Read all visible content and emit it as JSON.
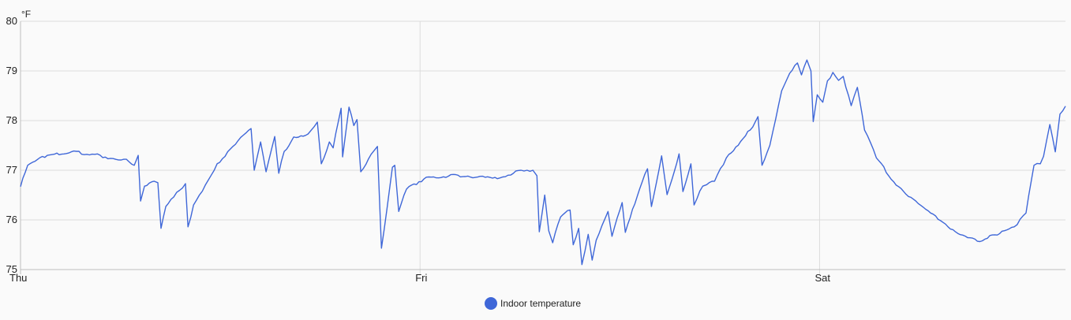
{
  "chart_data": {
    "type": "line",
    "title": "",
    "ylabel": "°F",
    "xlabel": "",
    "ylim": [
      75,
      80
    ],
    "xlim_hours": [
      0,
      62.77
    ],
    "yticks": [
      "75",
      "76",
      "77",
      "78",
      "79",
      "80"
    ],
    "xticks": [
      {
        "label": "Thu",
        "hour": 0
      },
      {
        "label": "Fri",
        "hour": 24
      },
      {
        "label": "Sat",
        "hour": 48
      }
    ],
    "grid": true,
    "legend_position": "bottom-center",
    "series": [
      {
        "name": "Indoor temperature",
        "color": "#3f67d8",
        "points": [
          [
            0,
            76.67
          ],
          [
            0.43,
            77.1
          ],
          [
            1.61,
            77.3
          ],
          [
            3.04,
            77.37
          ],
          [
            4.46,
            77.32
          ],
          [
            5.41,
            77.24
          ],
          [
            6.36,
            77.22
          ],
          [
            6.83,
            77.1
          ],
          [
            7.07,
            77.3
          ],
          [
            7.21,
            76.38
          ],
          [
            7.45,
            76.68
          ],
          [
            8.02,
            76.78
          ],
          [
            8.25,
            76.75
          ],
          [
            8.44,
            75.83
          ],
          [
            8.73,
            76.27
          ],
          [
            9.2,
            76.46
          ],
          [
            9.91,
            76.73
          ],
          [
            10.06,
            75.86
          ],
          [
            10.39,
            76.3
          ],
          [
            11.1,
            76.7
          ],
          [
            11.81,
            77.13
          ],
          [
            12.76,
            77.48
          ],
          [
            13.85,
            77.84
          ],
          [
            14.04,
            77.0
          ],
          [
            14.42,
            77.57
          ],
          [
            14.75,
            76.97
          ],
          [
            15.27,
            77.68
          ],
          [
            15.51,
            76.94
          ],
          [
            15.84,
            77.38
          ],
          [
            16.41,
            77.67
          ],
          [
            17.27,
            77.73
          ],
          [
            17.83,
            77.97
          ],
          [
            18.07,
            77.13
          ],
          [
            18.55,
            77.57
          ],
          [
            18.78,
            77.45
          ],
          [
            19.26,
            78.25
          ],
          [
            19.35,
            77.27
          ],
          [
            19.73,
            78.27
          ],
          [
            20.02,
            77.9
          ],
          [
            20.21,
            78.02
          ],
          [
            20.44,
            76.97
          ],
          [
            21.06,
            77.32
          ],
          [
            21.44,
            77.48
          ],
          [
            21.68,
            75.43
          ],
          [
            22.01,
            76.22
          ],
          [
            22.34,
            77.06
          ],
          [
            22.48,
            77.1
          ],
          [
            22.72,
            76.17
          ],
          [
            23.19,
            76.62
          ],
          [
            24.38,
            76.86
          ],
          [
            26.28,
            76.9
          ],
          [
            28.65,
            76.83
          ],
          [
            30.07,
            77.0
          ],
          [
            30.78,
            77.0
          ],
          [
            31.02,
            76.89
          ],
          [
            31.16,
            75.76
          ],
          [
            31.49,
            76.5
          ],
          [
            31.73,
            75.78
          ],
          [
            31.97,
            75.54
          ],
          [
            32.44,
            76.06
          ],
          [
            33.01,
            76.2
          ],
          [
            33.2,
            75.5
          ],
          [
            33.53,
            75.83
          ],
          [
            33.72,
            75.1
          ],
          [
            34.1,
            75.71
          ],
          [
            34.34,
            75.19
          ],
          [
            34.58,
            75.59
          ],
          [
            35.29,
            76.17
          ],
          [
            35.53,
            75.67
          ],
          [
            36.14,
            76.35
          ],
          [
            36.33,
            75.75
          ],
          [
            37.19,
            76.62
          ],
          [
            37.66,
            77.03
          ],
          [
            37.9,
            76.27
          ],
          [
            38.51,
            77.29
          ],
          [
            38.84,
            76.51
          ],
          [
            39.56,
            77.33
          ],
          [
            39.79,
            76.57
          ],
          [
            40.27,
            77.13
          ],
          [
            40.46,
            76.3
          ],
          [
            40.98,
            76.68
          ],
          [
            41.22,
            76.71
          ],
          [
            41.69,
            76.78
          ],
          [
            42.4,
            77.25
          ],
          [
            43.83,
            77.81
          ],
          [
            44.3,
            78.08
          ],
          [
            44.54,
            77.1
          ],
          [
            45.01,
            77.5
          ],
          [
            45.72,
            78.6
          ],
          [
            46.2,
            78.95
          ],
          [
            46.67,
            79.16
          ],
          [
            46.91,
            78.92
          ],
          [
            47.24,
            79.22
          ],
          [
            47.48,
            79.0
          ],
          [
            47.62,
            77.98
          ],
          [
            47.86,
            78.52
          ],
          [
            48.19,
            78.37
          ],
          [
            48.47,
            78.8
          ],
          [
            48.8,
            78.97
          ],
          [
            49.14,
            78.81
          ],
          [
            49.42,
            78.89
          ],
          [
            49.9,
            78.3
          ],
          [
            50.27,
            78.67
          ],
          [
            50.7,
            77.81
          ],
          [
            51.41,
            77.25
          ],
          [
            52.6,
            76.7
          ],
          [
            53.78,
            76.38
          ],
          [
            54.97,
            76.08
          ],
          [
            56.16,
            75.76
          ],
          [
            57.48,
            75.57
          ],
          [
            58.53,
            75.7
          ],
          [
            59.69,
            75.86
          ],
          [
            60.4,
            76.14
          ],
          [
            60.88,
            77.1
          ],
          [
            61.26,
            77.13
          ],
          [
            61.45,
            77.28
          ],
          [
            61.83,
            77.92
          ],
          [
            62.16,
            77.37
          ],
          [
            62.44,
            78.13
          ],
          [
            62.77,
            78.29
          ]
        ]
      }
    ]
  }
}
